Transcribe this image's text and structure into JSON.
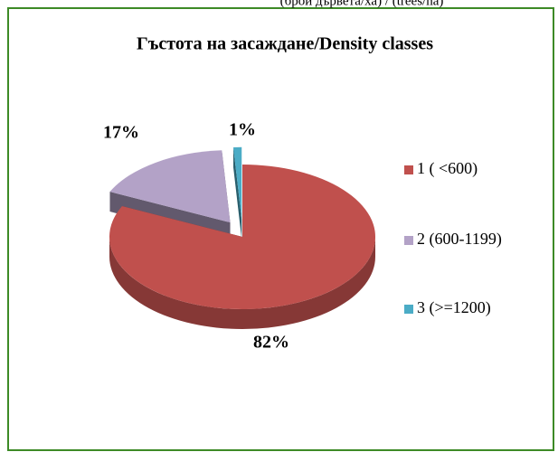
{
  "chart_data": {
    "type": "pie",
    "subtitle": "(брой дървета/ха) / (trees/ha)",
    "title": "Гъстота на засаждане/Density classes",
    "categories": [
      "1 ( <600)",
      "2 (600-1199)",
      "3 (>=1200)"
    ],
    "values": [
      82,
      17,
      1
    ],
    "value_labels": [
      "82%",
      "17%",
      "1%"
    ],
    "colors": [
      "#c0504d",
      "#b3a2c7",
      "#4bacc6"
    ],
    "legend": "right"
  }
}
